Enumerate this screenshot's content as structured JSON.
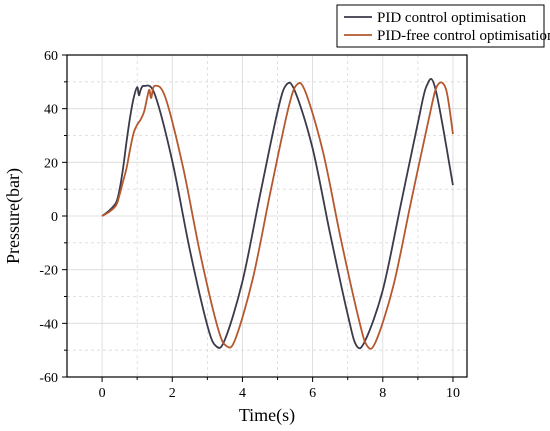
{
  "chart_data": {
    "type": "line",
    "xlabel": "Time(s)",
    "ylabel": "Pressure(bar)",
    "xlim": [
      -1,
      10.4
    ],
    "ylim": [
      -60,
      60
    ],
    "x_ticks": [
      0,
      2,
      4,
      6,
      8,
      10
    ],
    "y_ticks": [
      -60,
      -40,
      -20,
      0,
      20,
      40,
      60
    ],
    "grid": true,
    "legend_position": "top-right, above plot",
    "series": [
      {
        "name": "PID control optimisation",
        "color": "#3a3a4a",
        "points": [
          [
            0,
            0
          ],
          [
            0.2,
            2
          ],
          [
            0.4,
            5
          ],
          [
            0.5,
            10
          ],
          [
            0.6,
            18
          ],
          [
            0.7,
            28
          ],
          [
            0.8,
            37
          ],
          [
            0.9,
            44
          ],
          [
            1.0,
            48
          ],
          [
            1.05,
            45
          ],
          [
            1.1,
            47
          ],
          [
            1.2,
            48.5
          ],
          [
            1.5,
            45.4
          ],
          [
            2.0,
            20.5
          ],
          [
            2.5,
            -12.6
          ],
          [
            3.0,
            -40.8
          ],
          [
            3.25,
            -48.5
          ],
          [
            3.5,
            -46.1
          ],
          [
            4.0,
            -24.4
          ],
          [
            4.5,
            7.7
          ],
          [
            5.0,
            38.9
          ],
          [
            5.25,
            48.9
          ],
          [
            5.5,
            46.4
          ],
          [
            6.0,
            25.2
          ],
          [
            6.5,
            -6.7
          ],
          [
            7.0,
            -36.7
          ],
          [
            7.25,
            -48.3
          ],
          [
            7.5,
            -46.4
          ],
          [
            8.0,
            -27.6
          ],
          [
            8.5,
            3.4
          ],
          [
            9.0,
            34.7
          ],
          [
            9.25,
            48.5
          ],
          [
            9.5,
            47.4
          ],
          [
            10.0,
            11.5
          ]
        ]
      },
      {
        "name": "PID-free control optimisation",
        "color": "#b5582f",
        "points": [
          [
            0,
            0
          ],
          [
            0.2,
            1.5
          ],
          [
            0.4,
            4
          ],
          [
            0.5,
            8
          ],
          [
            0.6,
            13
          ],
          [
            0.7,
            18
          ],
          [
            0.8,
            25
          ],
          [
            0.9,
            31
          ],
          [
            1.0,
            34
          ],
          [
            1.1,
            36
          ],
          [
            1.2,
            39
          ],
          [
            1.3,
            45
          ],
          [
            1.35,
            47
          ],
          [
            1.4,
            44
          ],
          [
            1.5,
            48.5
          ],
          [
            1.8,
            44.3
          ],
          [
            2.3,
            18.6
          ],
          [
            2.8,
            -14.3
          ],
          [
            3.3,
            -41.8
          ],
          [
            3.55,
            -48.5
          ],
          [
            3.8,
            -45.8
          ],
          [
            4.3,
            -23.1
          ],
          [
            4.8,
            9.1
          ],
          [
            5.3,
            39.7
          ],
          [
            5.55,
            48.9
          ],
          [
            5.8,
            46.1
          ],
          [
            6.3,
            23.7
          ],
          [
            6.8,
            -8.3
          ],
          [
            7.3,
            -37.6
          ],
          [
            7.55,
            -48.3
          ],
          [
            7.8,
            -46.8
          ],
          [
            8.3,
            -26.1
          ],
          [
            8.8,
            5.0
          ],
          [
            9.3,
            35.5
          ],
          [
            9.55,
            48.5
          ],
          [
            9.8,
            47.3
          ],
          [
            10.0,
            30.5
          ]
        ]
      }
    ]
  }
}
